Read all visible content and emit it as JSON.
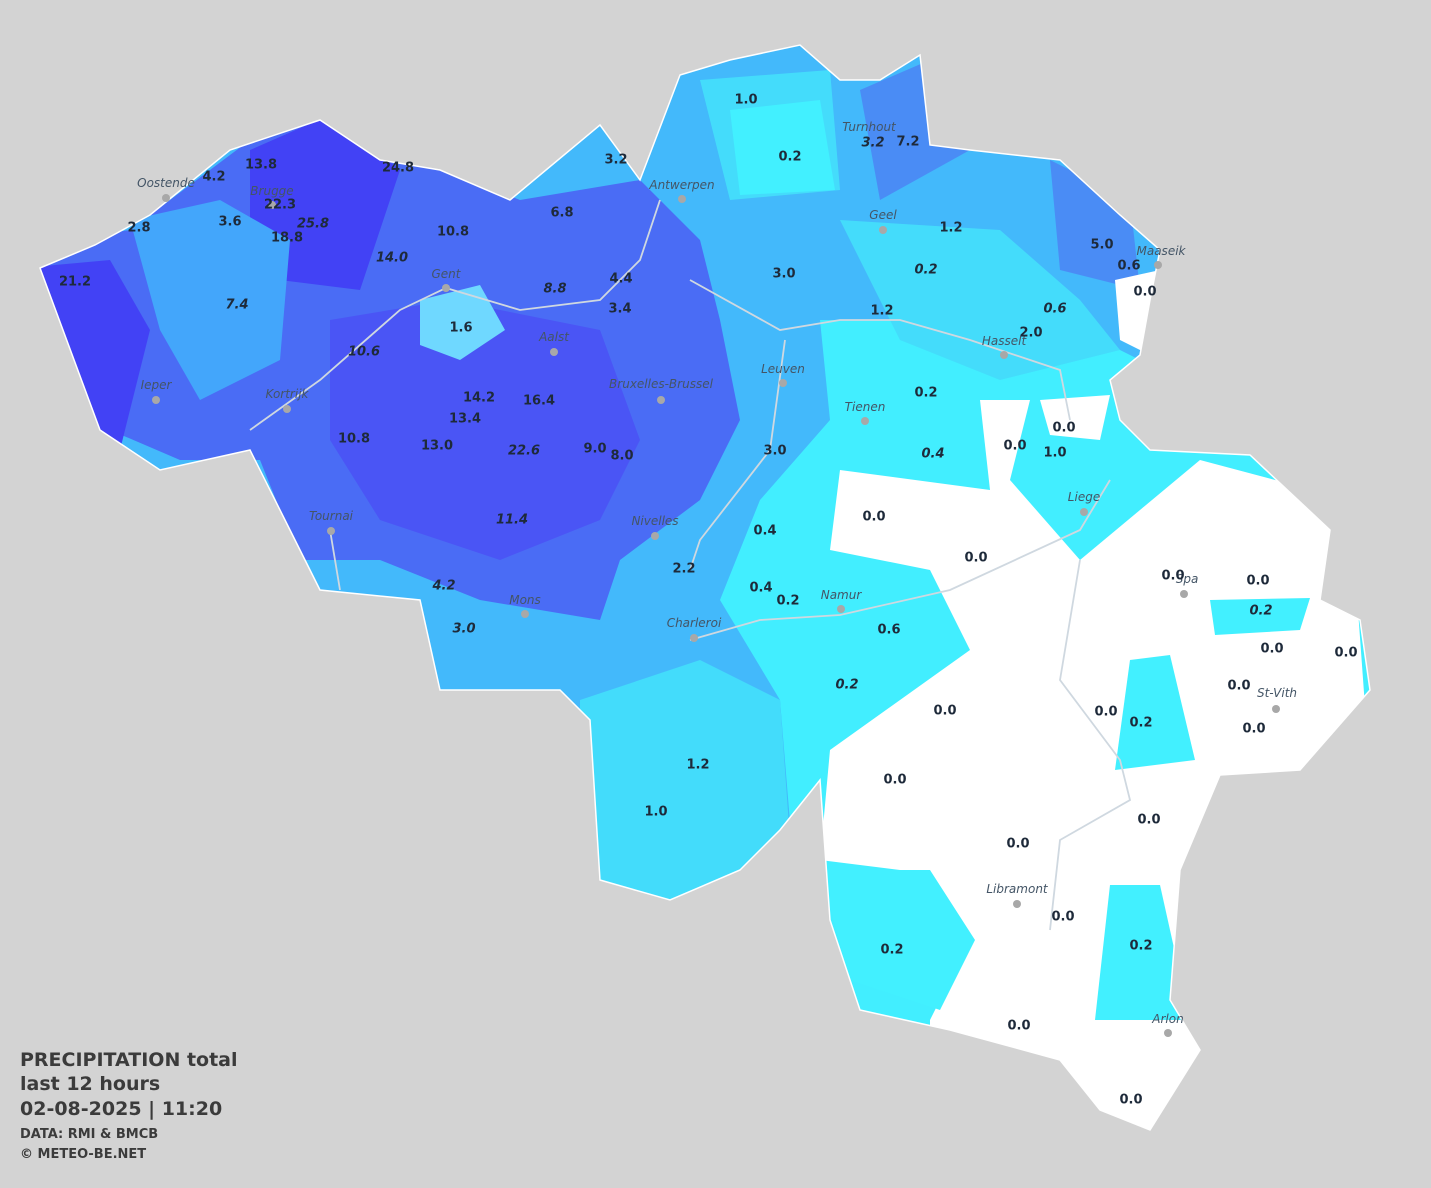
{
  "legend": {
    "title": "PRECIPITATION total",
    "period": "last 12 hours",
    "date": "02-08-2025  |  11:20",
    "source": "DATA: RMI & BMCB",
    "copyright": "© METEO-BE.NET"
  },
  "cities": [
    "Oostende",
    "Brugge",
    "Antwerpen",
    "Turnhout",
    "Geel",
    "Maaseik",
    "Gent",
    "Aalst",
    "Hasselt",
    "Ieper",
    "Kortrijk",
    "Bruxelles-Brussel",
    "Leuven",
    "Tienen",
    "Liege",
    "Tournai",
    "Nivelles",
    "Spa",
    "Namur",
    "Mons",
    "Charleroi",
    "St-Vith",
    "Libramont",
    "Arlon"
  ],
  "values": [
    "1.0",
    "0.2",
    "3.2",
    "7.2",
    "3.2",
    "13.8",
    "4.2",
    "24.8",
    "22.3",
    "25.8",
    "3.6",
    "2.8",
    "18.8",
    "10.8",
    "6.8",
    "14.0",
    "21.2",
    "1.2",
    "0.2",
    "5.0",
    "0.6",
    "0.0",
    "4.4",
    "3.0",
    "8.8",
    "7.4",
    "3.4",
    "1.6",
    "1.2",
    "0.6",
    "2.0",
    "10.6",
    "14.2",
    "16.4",
    "0.2",
    "13.4",
    "0.0",
    "0.0",
    "1.0",
    "10.8",
    "13.0",
    "22.6",
    "9.0",
    "8.0",
    "3.0",
    "0.4",
    "0.0",
    "11.4",
    "0.4",
    "0.0",
    "2.2",
    "0.0",
    "0.0",
    "4.2",
    "0.4",
    "0.2",
    "0.2",
    "3.0",
    "0.6",
    "0.0",
    "0.0",
    "0.2",
    "0.0",
    "0.0",
    "0.0",
    "0.2",
    "0.0",
    "1.2",
    "0.0",
    "1.0",
    "0.0",
    "0.0",
    "0.0",
    "0.2",
    "0.2",
    "0.0",
    "0.0"
  ]
}
